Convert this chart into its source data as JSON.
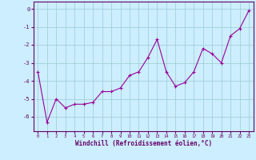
{
  "x": [
    0,
    1,
    2,
    3,
    4,
    5,
    6,
    7,
    8,
    9,
    10,
    11,
    12,
    13,
    14,
    15,
    16,
    17,
    18,
    19,
    20,
    21,
    22,
    23
  ],
  "y": [
    -3.5,
    -6.3,
    -5.0,
    -5.5,
    -5.3,
    -5.3,
    -5.2,
    -4.6,
    -4.6,
    -4.4,
    -3.7,
    -3.5,
    -2.7,
    -1.7,
    -3.5,
    -4.3,
    -4.1,
    -3.5,
    -2.2,
    -2.5,
    -3.0,
    -1.5,
    -1.1,
    -0.1
  ],
  "line_color": "#990099",
  "marker": "+",
  "marker_size": 3,
  "marker_color": "#990099",
  "bg_color": "#cceeff",
  "grid_color": "#99cccc",
  "axis_color": "#660066",
  "xlabel": "Windchill (Refroidissement éolien,°C)",
  "xlabel_color": "#660066",
  "ylabel_ticks": [
    0,
    -1,
    -2,
    -3,
    -4,
    -5,
    -6
  ],
  "xlim": [
    -0.5,
    23.5
  ],
  "ylim": [
    -6.8,
    0.4
  ],
  "xtick_fontsize": 4.0,
  "ytick_fontsize": 5.0,
  "xlabel_fontsize": 5.5
}
